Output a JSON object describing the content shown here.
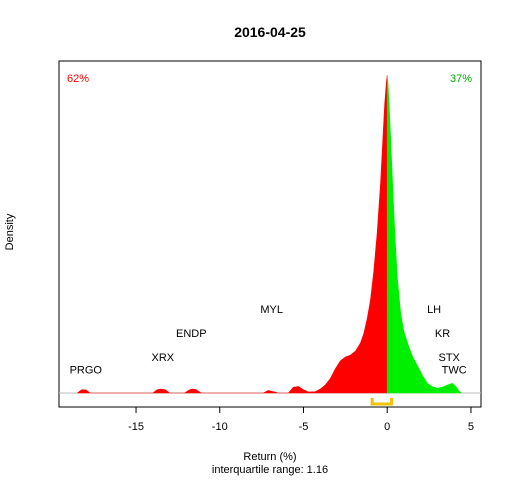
{
  "chart_data": {
    "type": "area",
    "title": "2016-04-25",
    "xlabel": "Return (%)",
    "subtitle": "interquartile range: 1.16",
    "ylabel": "Density",
    "xlim": [
      -19.6,
      5.6
    ],
    "ylim": [
      0,
      1
    ],
    "xticks": [
      -15,
      -10,
      -5,
      0,
      5
    ],
    "split_at": 0,
    "pct_negative": "62%",
    "pct_positive": "37%",
    "colors": {
      "negative": "#ff0000",
      "positive": "#00ee00",
      "baseline": "#bebebe",
      "iqr": "#f2c200",
      "neg_label": "#ff0000",
      "pos_label": "#00aa00"
    },
    "iqr_range": [
      -0.9,
      0.26
    ],
    "density": [
      [
        -18.5,
        0.0
      ],
      [
        -18.25,
        0.01
      ],
      [
        -18.0,
        0.01
      ],
      [
        -17.75,
        0.0
      ],
      [
        -14.0,
        0.0
      ],
      [
        -13.75,
        0.01
      ],
      [
        -13.5,
        0.012
      ],
      [
        -13.25,
        0.01
      ],
      [
        -13.0,
        0.0
      ],
      [
        -12.1,
        0.0
      ],
      [
        -11.8,
        0.01
      ],
      [
        -11.6,
        0.012
      ],
      [
        -11.4,
        0.01
      ],
      [
        -11.1,
        0.0
      ],
      [
        -7.4,
        0.0
      ],
      [
        -7.1,
        0.008
      ],
      [
        -6.8,
        0.004
      ],
      [
        -6.5,
        0.0
      ],
      [
        -5.9,
        0.0
      ],
      [
        -5.6,
        0.018
      ],
      [
        -5.3,
        0.02
      ],
      [
        -5.0,
        0.01
      ],
      [
        -4.7,
        0.003
      ],
      [
        -4.3,
        0.004
      ],
      [
        -4.0,
        0.012
      ],
      [
        -3.7,
        0.025
      ],
      [
        -3.4,
        0.045
      ],
      [
        -3.1,
        0.075
      ],
      [
        -2.8,
        0.1
      ],
      [
        -2.5,
        0.112
      ],
      [
        -2.2,
        0.118
      ],
      [
        -1.9,
        0.13
      ],
      [
        -1.6,
        0.155
      ],
      [
        -1.4,
        0.185
      ],
      [
        -1.2,
        0.23
      ],
      [
        -1.0,
        0.29
      ],
      [
        -0.8,
        0.38
      ],
      [
        -0.6,
        0.5
      ],
      [
        -0.4,
        0.65
      ],
      [
        -0.25,
        0.8
      ],
      [
        -0.15,
        0.9
      ],
      [
        -0.05,
        0.97
      ],
      [
        0.0,
        0.99
      ],
      [
        0.05,
        0.96
      ],
      [
        0.15,
        0.86
      ],
      [
        0.3,
        0.68
      ],
      [
        0.45,
        0.5
      ],
      [
        0.6,
        0.36
      ],
      [
        0.8,
        0.25
      ],
      [
        1.0,
        0.19
      ],
      [
        1.25,
        0.15
      ],
      [
        1.5,
        0.115
      ],
      [
        1.8,
        0.085
      ],
      [
        2.1,
        0.055
      ],
      [
        2.4,
        0.03
      ],
      [
        2.7,
        0.02
      ],
      [
        3.0,
        0.015
      ],
      [
        3.3,
        0.018
      ],
      [
        3.6,
        0.025
      ],
      [
        3.9,
        0.03
      ],
      [
        4.1,
        0.02
      ],
      [
        4.3,
        0.005
      ],
      [
        4.45,
        0.0
      ]
    ],
    "annotations": [
      {
        "label": "PRGO",
        "x": -18.0,
        "level": 0.06
      },
      {
        "label": "XRX",
        "x": -13.4,
        "level": 0.1
      },
      {
        "label": "ENDP",
        "x": -11.7,
        "level": 0.175
      },
      {
        "label": "MYL",
        "x": -6.9,
        "level": 0.25
      },
      {
        "label": "LH",
        "x": 2.8,
        "level": 0.25
      },
      {
        "label": "KR",
        "x": 3.3,
        "level": 0.175
      },
      {
        "label": "STX",
        "x": 3.7,
        "level": 0.1
      },
      {
        "label": "TWC",
        "x": 4.0,
        "level": 0.06
      }
    ]
  }
}
